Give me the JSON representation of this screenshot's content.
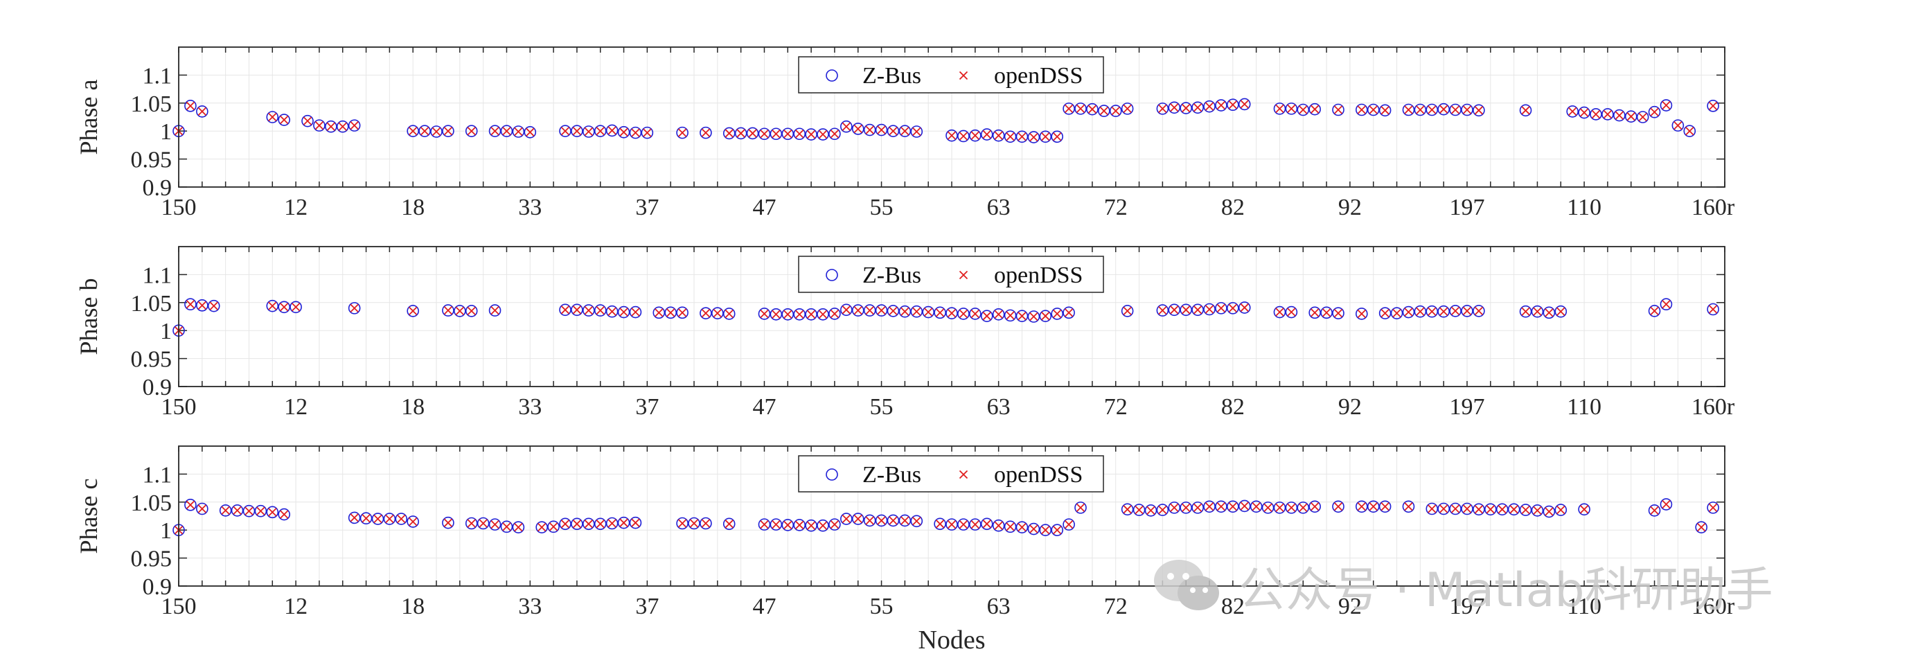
{
  "chart_data": {
    "type": "scatter",
    "xlabel": "Nodes",
    "colors": {
      "zbus": "#1f1fd6",
      "opendss": "#e01f1f",
      "axis": "#262626",
      "grid": "#e6e6e6"
    },
    "x_tick_labels": [
      "150",
      "12",
      "18",
      "33",
      "37",
      "47",
      "55",
      "63",
      "72",
      "82",
      "92",
      "197",
      "110",
      "160r"
    ],
    "xlim": [
      0,
      132
    ],
    "grid": true,
    "legend": {
      "placement": "top-center",
      "entries": [
        "Z-Bus",
        "openDSS"
      ]
    },
    "panels": [
      {
        "ylabel": "Phase a",
        "ylim": [
          0.9,
          1.15
        ],
        "yticks": [
          "0.9",
          "0.95",
          "1",
          "1.05",
          "1.1"
        ],
        "points": [
          [
            0,
            1.0
          ],
          [
            1,
            1.045
          ],
          [
            2,
            1.035
          ],
          [
            8,
            1.025
          ],
          [
            9,
            1.02
          ],
          [
            11,
            1.018
          ],
          [
            12,
            1.01
          ],
          [
            13,
            1.008
          ],
          [
            14,
            1.008
          ],
          [
            15,
            1.01
          ],
          [
            20,
            1.0
          ],
          [
            21,
            1.0
          ],
          [
            22,
            0.999
          ],
          [
            23,
            1.0
          ],
          [
            25,
            1.0
          ],
          [
            27,
            1.0
          ],
          [
            28,
            1.0
          ],
          [
            29,
            0.999
          ],
          [
            30,
            0.998
          ],
          [
            33,
            1.0
          ],
          [
            34,
            1.0
          ],
          [
            35,
            0.999
          ],
          [
            36,
            1.0
          ],
          [
            37,
            1.001
          ],
          [
            38,
            0.998
          ],
          [
            39,
            0.997
          ],
          [
            40,
            0.997
          ],
          [
            43,
            0.997
          ],
          [
            45,
            0.997
          ],
          [
            47,
            0.996
          ],
          [
            48,
            0.996
          ],
          [
            49,
            0.996
          ],
          [
            50,
            0.995
          ],
          [
            51,
            0.995
          ],
          [
            52,
            0.995
          ],
          [
            53,
            0.995
          ],
          [
            54,
            0.994
          ],
          [
            55,
            0.994
          ],
          [
            56,
            0.995
          ],
          [
            57,
            1.008
          ],
          [
            58,
            1.004
          ],
          [
            59,
            1.002
          ],
          [
            60,
            1.002
          ],
          [
            61,
            1.0
          ],
          [
            62,
            1.0
          ],
          [
            63,
            0.999
          ],
          [
            66,
            0.992
          ],
          [
            67,
            0.991
          ],
          [
            68,
            0.992
          ],
          [
            69,
            0.994
          ],
          [
            70,
            0.992
          ],
          [
            71,
            0.99
          ],
          [
            72,
            0.99
          ],
          [
            73,
            0.989
          ],
          [
            74,
            0.99
          ],
          [
            75,
            0.99
          ],
          [
            76,
            1.04
          ],
          [
            77,
            1.04
          ],
          [
            78,
            1.039
          ],
          [
            79,
            1.036
          ],
          [
            80,
            1.036
          ],
          [
            81,
            1.04
          ],
          [
            84,
            1.04
          ],
          [
            85,
            1.042
          ],
          [
            86,
            1.041
          ],
          [
            87,
            1.042
          ],
          [
            88,
            1.044
          ],
          [
            89,
            1.046
          ],
          [
            90,
            1.047
          ],
          [
            91,
            1.048
          ],
          [
            94,
            1.04
          ],
          [
            95,
            1.04
          ],
          [
            96,
            1.038
          ],
          [
            97,
            1.039
          ],
          [
            99,
            1.038
          ],
          [
            101,
            1.038
          ],
          [
            102,
            1.038
          ],
          [
            103,
            1.037
          ],
          [
            105,
            1.038
          ],
          [
            106,
            1.038
          ],
          [
            107,
            1.038
          ],
          [
            108,
            1.039
          ],
          [
            109,
            1.038
          ],
          [
            110,
            1.038
          ],
          [
            111,
            1.037
          ],
          [
            115,
            1.037
          ],
          [
            119,
            1.035
          ],
          [
            120,
            1.033
          ],
          [
            121,
            1.03
          ],
          [
            122,
            1.03
          ],
          [
            123,
            1.028
          ],
          [
            124,
            1.026
          ],
          [
            125,
            1.025
          ],
          [
            126,
            1.034
          ],
          [
            127,
            1.046
          ],
          [
            128,
            1.01
          ],
          [
            129,
            1.0
          ],
          [
            131,
            1.045
          ]
        ]
      },
      {
        "ylabel": "Phase b",
        "ylim": [
          0.9,
          1.15
        ],
        "yticks": [
          "0.9",
          "0.95",
          "1",
          "1.05",
          "1.1"
        ],
        "points": [
          [
            0,
            1.0
          ],
          [
            1,
            1.047
          ],
          [
            2,
            1.045
          ],
          [
            3,
            1.044
          ],
          [
            8,
            1.044
          ],
          [
            9,
            1.042
          ],
          [
            10,
            1.042
          ],
          [
            15,
            1.04
          ],
          [
            20,
            1.035
          ],
          [
            23,
            1.036
          ],
          [
            24,
            1.035
          ],
          [
            25,
            1.035
          ],
          [
            27,
            1.036
          ],
          [
            33,
            1.037
          ],
          [
            34,
            1.037
          ],
          [
            35,
            1.036
          ],
          [
            36,
            1.036
          ],
          [
            37,
            1.034
          ],
          [
            38,
            1.033
          ],
          [
            39,
            1.033
          ],
          [
            41,
            1.032
          ],
          [
            42,
            1.032
          ],
          [
            43,
            1.032
          ],
          [
            45,
            1.031
          ],
          [
            46,
            1.031
          ],
          [
            47,
            1.03
          ],
          [
            50,
            1.03
          ],
          [
            51,
            1.029
          ],
          [
            52,
            1.029
          ],
          [
            53,
            1.029
          ],
          [
            54,
            1.029
          ],
          [
            55,
            1.029
          ],
          [
            56,
            1.03
          ],
          [
            57,
            1.037
          ],
          [
            58,
            1.036
          ],
          [
            59,
            1.036
          ],
          [
            60,
            1.036
          ],
          [
            61,
            1.035
          ],
          [
            62,
            1.034
          ],
          [
            63,
            1.034
          ],
          [
            64,
            1.033
          ],
          [
            65,
            1.032
          ],
          [
            66,
            1.031
          ],
          [
            67,
            1.03
          ],
          [
            68,
            1.03
          ],
          [
            69,
            1.026
          ],
          [
            70,
            1.029
          ],
          [
            71,
            1.027
          ],
          [
            72,
            1.026
          ],
          [
            73,
            1.025
          ],
          [
            74,
            1.026
          ],
          [
            75,
            1.03
          ],
          [
            76,
            1.032
          ],
          [
            81,
            1.035
          ],
          [
            84,
            1.036
          ],
          [
            85,
            1.037
          ],
          [
            86,
            1.037
          ],
          [
            87,
            1.037
          ],
          [
            88,
            1.038
          ],
          [
            89,
            1.04
          ],
          [
            90,
            1.04
          ],
          [
            91,
            1.041
          ],
          [
            94,
            1.033
          ],
          [
            95,
            1.033
          ],
          [
            97,
            1.032
          ],
          [
            98,
            1.032
          ],
          [
            99,
            1.031
          ],
          [
            101,
            1.03
          ],
          [
            103,
            1.031
          ],
          [
            104,
            1.031
          ],
          [
            105,
            1.033
          ],
          [
            106,
            1.034
          ],
          [
            107,
            1.034
          ],
          [
            108,
            1.034
          ],
          [
            109,
            1.035
          ],
          [
            110,
            1.035
          ],
          [
            111,
            1.035
          ],
          [
            115,
            1.034
          ],
          [
            116,
            1.034
          ],
          [
            117,
            1.032
          ],
          [
            118,
            1.034
          ],
          [
            126,
            1.035
          ],
          [
            127,
            1.047
          ],
          [
            131,
            1.038
          ]
        ]
      },
      {
        "ylabel": "Phase c",
        "ylim": [
          0.9,
          1.15
        ],
        "yticks": [
          "0.9",
          "0.95",
          "1",
          "1.05",
          "1.1"
        ],
        "points": [
          [
            0,
            1.0
          ],
          [
            1,
            1.045
          ],
          [
            2,
            1.038
          ],
          [
            4,
            1.035
          ],
          [
            5,
            1.035
          ],
          [
            6,
            1.034
          ],
          [
            7,
            1.034
          ],
          [
            8,
            1.032
          ],
          [
            9,
            1.028
          ],
          [
            15,
            1.022
          ],
          [
            16,
            1.021
          ],
          [
            17,
            1.02
          ],
          [
            18,
            1.02
          ],
          [
            19,
            1.02
          ],
          [
            20,
            1.015
          ],
          [
            23,
            1.013
          ],
          [
            25,
            1.012
          ],
          [
            26,
            1.012
          ],
          [
            27,
            1.01
          ],
          [
            28,
            1.006
          ],
          [
            29,
            1.005
          ],
          [
            31,
            1.005
          ],
          [
            32,
            1.006
          ],
          [
            33,
            1.011
          ],
          [
            34,
            1.011
          ],
          [
            35,
            1.011
          ],
          [
            36,
            1.011
          ],
          [
            37,
            1.012
          ],
          [
            38,
            1.013
          ],
          [
            39,
            1.013
          ],
          [
            43,
            1.012
          ],
          [
            44,
            1.012
          ],
          [
            45,
            1.012
          ],
          [
            47,
            1.011
          ],
          [
            50,
            1.01
          ],
          [
            51,
            1.01
          ],
          [
            52,
            1.009
          ],
          [
            53,
            1.009
          ],
          [
            54,
            1.008
          ],
          [
            55,
            1.008
          ],
          [
            56,
            1.01
          ],
          [
            57,
            1.02
          ],
          [
            58,
            1.02
          ],
          [
            59,
            1.017
          ],
          [
            60,
            1.017
          ],
          [
            61,
            1.017
          ],
          [
            62,
            1.017
          ],
          [
            63,
            1.016
          ],
          [
            65,
            1.011
          ],
          [
            66,
            1.01
          ],
          [
            67,
            1.01
          ],
          [
            68,
            1.01
          ],
          [
            69,
            1.011
          ],
          [
            70,
            1.008
          ],
          [
            71,
            1.006
          ],
          [
            72,
            1.005
          ],
          [
            73,
            1.002
          ],
          [
            74,
            1.0
          ],
          [
            75,
            1.0
          ],
          [
            76,
            1.01
          ],
          [
            77,
            1.04
          ],
          [
            81,
            1.037
          ],
          [
            82,
            1.036
          ],
          [
            83,
            1.035
          ],
          [
            84,
            1.036
          ],
          [
            85,
            1.04
          ],
          [
            86,
            1.04
          ],
          [
            87,
            1.04
          ],
          [
            88,
            1.042
          ],
          [
            89,
            1.042
          ],
          [
            90,
            1.042
          ],
          [
            91,
            1.043
          ],
          [
            92,
            1.042
          ],
          [
            93,
            1.04
          ],
          [
            94,
            1.04
          ],
          [
            95,
            1.04
          ],
          [
            96,
            1.04
          ],
          [
            97,
            1.042
          ],
          [
            99,
            1.042
          ],
          [
            101,
            1.042
          ],
          [
            102,
            1.042
          ],
          [
            103,
            1.042
          ],
          [
            105,
            1.042
          ],
          [
            107,
            1.038
          ],
          [
            108,
            1.038
          ],
          [
            109,
            1.038
          ],
          [
            110,
            1.038
          ],
          [
            111,
            1.037
          ],
          [
            112,
            1.037
          ],
          [
            113,
            1.037
          ],
          [
            114,
            1.037
          ],
          [
            115,
            1.036
          ],
          [
            116,
            1.035
          ],
          [
            117,
            1.033
          ],
          [
            118,
            1.036
          ],
          [
            120,
            1.037
          ],
          [
            126,
            1.035
          ],
          [
            127,
            1.046
          ],
          [
            130,
            1.005
          ],
          [
            131,
            1.04
          ]
        ]
      }
    ]
  },
  "watermark": {
    "text": "公众号 · Matlab科研助手"
  }
}
